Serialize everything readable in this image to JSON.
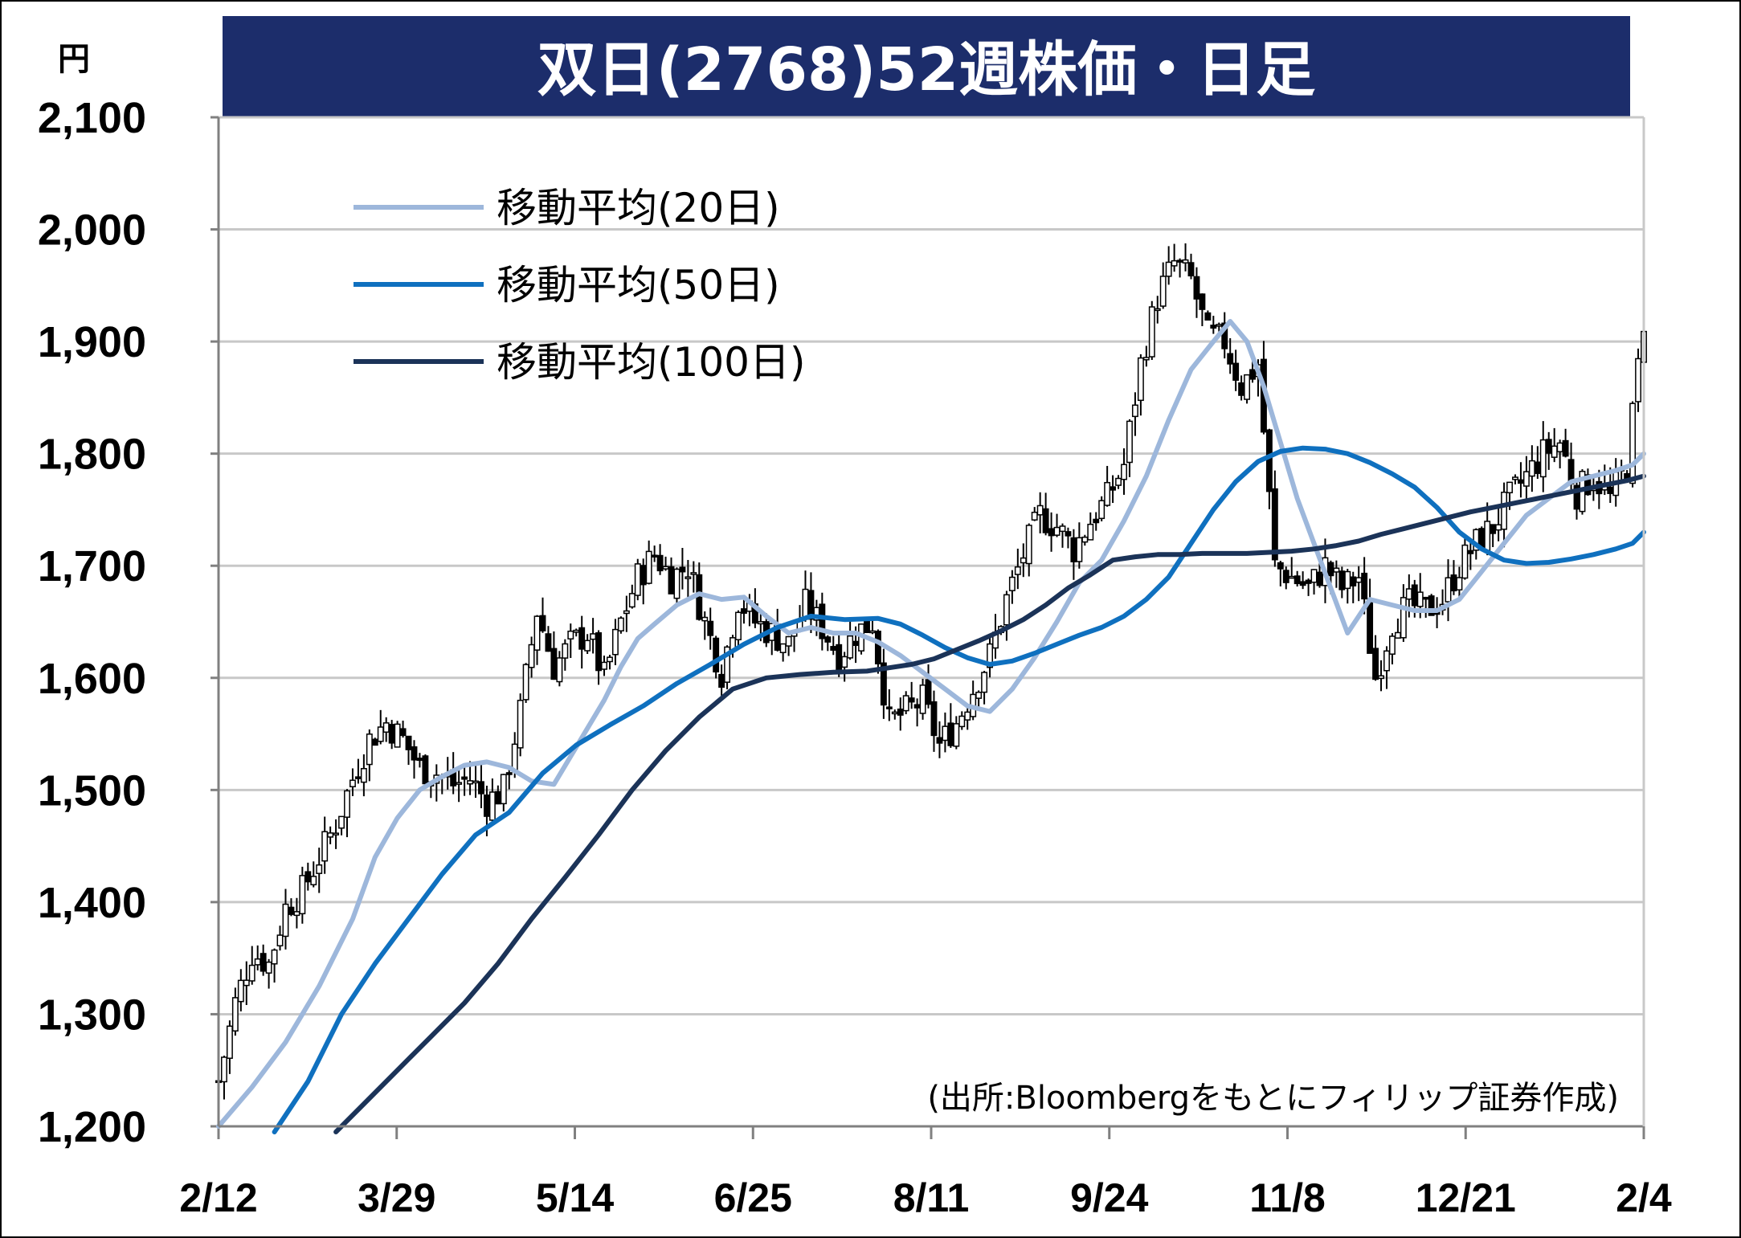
{
  "chart_data": {
    "type": "line",
    "title": "双日(2768)52週株価・日足",
    "ylabel": "円",
    "ylim": [
      1200,
      2100
    ],
    "y_ticks": [
      1200,
      1300,
      1400,
      1500,
      1600,
      1700,
      1800,
      1900,
      2000,
      2100
    ],
    "y_tick_labels": [
      "1,200",
      "1,300",
      "1,400",
      "1,500",
      "1,600",
      "1,700",
      "1,800",
      "1,900",
      "2,000",
      "2,100"
    ],
    "x_tick_labels": [
      "2/12",
      "3/29",
      "5/14",
      "6/25",
      "8/11",
      "9/24",
      "11/8",
      "12/21",
      "2/4"
    ],
    "grid": true,
    "legend": "top-left",
    "source": "(出所:Bloombergをもとにフィリップ証券作成)",
    "colors": {
      "title_bg": "#1c2d6b",
      "grid": "#c8c8c8",
      "axis": "#808080",
      "candle": "#000000"
    },
    "price_path": [
      [
        0,
        1240
      ],
      [
        3,
        1310
      ],
      [
        6,
        1355
      ],
      [
        9,
        1345
      ],
      [
        12,
        1395
      ],
      [
        15,
        1410
      ],
      [
        18,
        1440
      ],
      [
        21,
        1470
      ],
      [
        24,
        1510
      ],
      [
        27,
        1545
      ],
      [
        30,
        1560
      ],
      [
        33,
        1545
      ],
      [
        36,
        1520
      ],
      [
        39,
        1515
      ],
      [
        42,
        1505
      ],
      [
        45,
        1510
      ],
      [
        48,
        1490
      ],
      [
        51,
        1500
      ],
      [
        54,
        1570
      ],
      [
        57,
        1660
      ],
      [
        60,
        1610
      ],
      [
        63,
        1630
      ],
      [
        66,
        1640
      ],
      [
        69,
        1600
      ],
      [
        72,
        1650
      ],
      [
        75,
        1690
      ],
      [
        78,
        1710
      ],
      [
        81,
        1690
      ],
      [
        84,
        1700
      ],
      [
        87,
        1650
      ],
      [
        90,
        1605
      ],
      [
        93,
        1670
      ],
      [
        96,
        1650
      ],
      [
        99,
        1640
      ],
      [
        102,
        1630
      ],
      [
        105,
        1665
      ],
      [
        108,
        1645
      ],
      [
        111,
        1620
      ],
      [
        114,
        1640
      ],
      [
        117,
        1650
      ],
      [
        120,
        1560
      ],
      [
        123,
        1570
      ],
      [
        126,
        1580
      ],
      [
        129,
        1540
      ],
      [
        132,
        1560
      ],
      [
        135,
        1590
      ],
      [
        138,
        1620
      ],
      [
        141,
        1670
      ],
      [
        144,
        1710
      ],
      [
        147,
        1745
      ],
      [
        150,
        1735
      ],
      [
        153,
        1715
      ],
      [
        156,
        1740
      ],
      [
        159,
        1760
      ],
      [
        162,
        1790
      ],
      [
        165,
        1880
      ],
      [
        168,
        1940
      ],
      [
        171,
        1970
      ],
      [
        174,
        1955
      ],
      [
        177,
        1905
      ],
      [
        180,
        1900
      ],
      [
        183,
        1860
      ],
      [
        186,
        1880
      ],
      [
        189,
        1700
      ],
      [
        192,
        1690
      ],
      [
        195,
        1680
      ],
      [
        198,
        1700
      ],
      [
        201,
        1680
      ],
      [
        204,
        1690
      ],
      [
        207,
        1600
      ],
      [
        210,
        1650
      ],
      [
        213,
        1665
      ],
      [
        216,
        1660
      ],
      [
        219,
        1670
      ],
      [
        222,
        1700
      ],
      [
        225,
        1720
      ],
      [
        228,
        1735
      ],
      [
        231,
        1760
      ],
      [
        234,
        1780
      ],
      [
        237,
        1800
      ],
      [
        240,
        1810
      ],
      [
        243,
        1765
      ],
      [
        246,
        1780
      ],
      [
        249,
        1760
      ],
      [
        252,
        1790
      ],
      [
        255,
        1920
      ]
    ],
    "series": [
      {
        "name": "移動平均(20日)",
        "color": "#9db7db",
        "points": [
          [
            0,
            1200
          ],
          [
            6,
            1235
          ],
          [
            12,
            1275
          ],
          [
            18,
            1325
          ],
          [
            24,
            1385
          ],
          [
            28,
            1440
          ],
          [
            32,
            1475
          ],
          [
            36,
            1500
          ],
          [
            40,
            1512
          ],
          [
            44,
            1522
          ],
          [
            48,
            1525
          ],
          [
            52,
            1520
          ],
          [
            56,
            1508
          ],
          [
            60,
            1505
          ],
          [
            63,
            1530
          ],
          [
            66,
            1555
          ],
          [
            69,
            1580
          ],
          [
            72,
            1610
          ],
          [
            75,
            1635
          ],
          [
            78,
            1648
          ],
          [
            82,
            1665
          ],
          [
            86,
            1675
          ],
          [
            90,
            1670
          ],
          [
            94,
            1672
          ],
          [
            98,
            1655
          ],
          [
            102,
            1640
          ],
          [
            106,
            1645
          ],
          [
            110,
            1640
          ],
          [
            114,
            1640
          ],
          [
            118,
            1632
          ],
          [
            122,
            1620
          ],
          [
            126,
            1605
          ],
          [
            130,
            1590
          ],
          [
            134,
            1575
          ],
          [
            138,
            1570
          ],
          [
            142,
            1590
          ],
          [
            146,
            1618
          ],
          [
            150,
            1650
          ],
          [
            154,
            1685
          ],
          [
            158,
            1705
          ],
          [
            162,
            1740
          ],
          [
            166,
            1780
          ],
          [
            170,
            1830
          ],
          [
            174,
            1875
          ],
          [
            178,
            1900
          ],
          [
            181,
            1918
          ],
          [
            184,
            1900
          ],
          [
            187,
            1860
          ],
          [
            190,
            1810
          ],
          [
            193,
            1760
          ],
          [
            196,
            1720
          ],
          [
            199,
            1680
          ],
          [
            202,
            1640
          ],
          [
            206,
            1670
          ],
          [
            210,
            1665
          ],
          [
            214,
            1660
          ],
          [
            218,
            1660
          ],
          [
            222,
            1670
          ],
          [
            226,
            1695
          ],
          [
            230,
            1720
          ],
          [
            234,
            1745
          ],
          [
            238,
            1760
          ],
          [
            242,
            1775
          ],
          [
            246,
            1780
          ],
          [
            250,
            1785
          ],
          [
            253,
            1790
          ],
          [
            255,
            1800
          ]
        ]
      },
      {
        "name": "移動平均(50日)",
        "color": "#0f70bf",
        "points": [
          [
            10,
            1195
          ],
          [
            16,
            1240
          ],
          [
            22,
            1300
          ],
          [
            28,
            1345
          ],
          [
            34,
            1385
          ],
          [
            40,
            1425
          ],
          [
            46,
            1460
          ],
          [
            52,
            1480
          ],
          [
            58,
            1515
          ],
          [
            64,
            1540
          ],
          [
            70,
            1558
          ],
          [
            76,
            1575
          ],
          [
            82,
            1595
          ],
          [
            88,
            1612
          ],
          [
            94,
            1630
          ],
          [
            100,
            1645
          ],
          [
            106,
            1655
          ],
          [
            112,
            1652
          ],
          [
            118,
            1653
          ],
          [
            122,
            1648
          ],
          [
            126,
            1638
          ],
          [
            130,
            1627
          ],
          [
            134,
            1618
          ],
          [
            138,
            1612
          ],
          [
            142,
            1615
          ],
          [
            146,
            1622
          ],
          [
            150,
            1630
          ],
          [
            154,
            1638
          ],
          [
            158,
            1645
          ],
          [
            162,
            1655
          ],
          [
            166,
            1670
          ],
          [
            170,
            1690
          ],
          [
            174,
            1720
          ],
          [
            178,
            1750
          ],
          [
            182,
            1775
          ],
          [
            186,
            1793
          ],
          [
            190,
            1802
          ],
          [
            194,
            1805
          ],
          [
            198,
            1804
          ],
          [
            202,
            1800
          ],
          [
            206,
            1792
          ],
          [
            210,
            1782
          ],
          [
            214,
            1770
          ],
          [
            218,
            1752
          ],
          [
            222,
            1730
          ],
          [
            226,
            1715
          ],
          [
            230,
            1705
          ],
          [
            234,
            1702
          ],
          [
            238,
            1703
          ],
          [
            242,
            1706
          ],
          [
            246,
            1710
          ],
          [
            250,
            1715
          ],
          [
            253,
            1720
          ],
          [
            255,
            1730
          ]
        ]
      },
      {
        "name": "移動平均(100日)",
        "color": "#1b3358",
        "points": [
          [
            21,
            1195
          ],
          [
            26,
            1220
          ],
          [
            32,
            1250
          ],
          [
            38,
            1280
          ],
          [
            44,
            1310
          ],
          [
            50,
            1345
          ],
          [
            56,
            1385
          ],
          [
            62,
            1422
          ],
          [
            68,
            1460
          ],
          [
            74,
            1500
          ],
          [
            80,
            1535
          ],
          [
            86,
            1565
          ],
          [
            92,
            1590
          ],
          [
            98,
            1600
          ],
          [
            104,
            1603
          ],
          [
            110,
            1605
          ],
          [
            116,
            1606
          ],
          [
            120,
            1609
          ],
          [
            124,
            1612
          ],
          [
            128,
            1617
          ],
          [
            132,
            1625
          ],
          [
            136,
            1633
          ],
          [
            140,
            1642
          ],
          [
            144,
            1652
          ],
          [
            148,
            1665
          ],
          [
            152,
            1680
          ],
          [
            156,
            1692
          ],
          [
            160,
            1705
          ],
          [
            164,
            1708
          ],
          [
            168,
            1710
          ],
          [
            172,
            1710
          ],
          [
            176,
            1711
          ],
          [
            180,
            1711
          ],
          [
            184,
            1711
          ],
          [
            188,
            1712
          ],
          [
            192,
            1713
          ],
          [
            196,
            1715
          ],
          [
            200,
            1718
          ],
          [
            204,
            1722
          ],
          [
            208,
            1728
          ],
          [
            212,
            1733
          ],
          [
            216,
            1738
          ],
          [
            220,
            1743
          ],
          [
            224,
            1748
          ],
          [
            228,
            1752
          ],
          [
            232,
            1756
          ],
          [
            236,
            1760
          ],
          [
            240,
            1764
          ],
          [
            244,
            1768
          ],
          [
            248,
            1772
          ],
          [
            252,
            1776
          ],
          [
            255,
            1780
          ]
        ]
      }
    ]
  }
}
